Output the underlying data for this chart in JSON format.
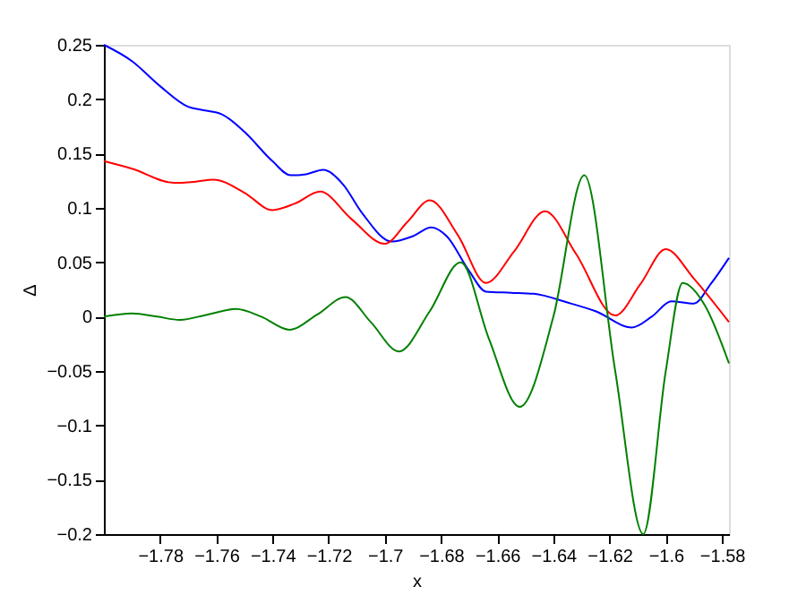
{
  "chart_data": {
    "type": "line",
    "xlabel": "x",
    "ylabel": "Δ",
    "xlim": [
      -1.8,
      -1.5775
    ],
    "ylim": [
      -0.2,
      0.25
    ],
    "xticks": [
      -1.78,
      -1.76,
      -1.74,
      -1.72,
      -1.7,
      -1.68,
      -1.66,
      -1.64,
      -1.62,
      -1.6,
      -1.58
    ],
    "yticks": [
      -0.2,
      -0.15,
      -0.1,
      -0.05,
      0,
      0.05,
      0.1,
      0.15,
      0.2,
      0.25
    ],
    "grid": false,
    "legend": false,
    "marker": "none",
    "line_style": "solid",
    "series": [
      {
        "color": "#0000ff",
        "x": [
          -1.8,
          -1.79,
          -1.78,
          -1.77,
          -1.765,
          -1.758,
          -1.75,
          -1.74,
          -1.7335,
          -1.728,
          -1.722,
          -1.715,
          -1.708,
          -1.6975,
          -1.69,
          -1.6835,
          -1.678,
          -1.67,
          -1.664,
          -1.655,
          -1.647,
          -1.635,
          -1.625,
          -1.612,
          -1.605,
          -1.598,
          -1.59,
          -1.584,
          -1.5775
        ],
        "values": [
          0.25,
          0.235,
          0.212,
          0.193,
          0.19,
          0.186,
          0.17,
          0.143,
          0.13,
          0.131,
          0.135,
          0.122,
          0.095,
          0.069,
          0.074,
          0.082,
          0.074,
          0.042,
          0.023,
          0.022,
          0.021,
          0.013,
          0.005,
          -0.01,
          0.0,
          0.014,
          0.012,
          0.03,
          0.054
        ]
      },
      {
        "color": "#ff0000",
        "x": [
          -1.8,
          -1.79,
          -1.775,
          -1.768,
          -1.761,
          -1.75,
          -1.74,
          -1.732,
          -1.723,
          -1.712,
          -1.7,
          -1.692,
          -1.684,
          -1.674,
          -1.664,
          -1.654,
          -1.643,
          -1.632,
          -1.618,
          -1.609,
          -1.6,
          -1.59,
          -1.5775
        ],
        "values": [
          0.143,
          0.136,
          0.123,
          0.124,
          0.126,
          0.114,
          0.098,
          0.104,
          0.115,
          0.09,
          0.067,
          0.087,
          0.107,
          0.075,
          0.031,
          0.06,
          0.097,
          0.058,
          0.001,
          0.03,
          0.062,
          0.035,
          -0.005
        ]
      },
      {
        "color": "#008000",
        "x": [
          -1.8,
          -1.79,
          -1.781,
          -1.773,
          -1.763,
          -1.753,
          -1.744,
          -1.734,
          -1.724,
          -1.714,
          -1.705,
          -1.695,
          -1.684,
          -1.673,
          -1.663,
          -1.652,
          -1.64,
          -1.629,
          -1.618,
          -1.608,
          -1.6,
          -1.594,
          -1.586,
          -1.5775
        ],
        "values": [
          0.0,
          0.003,
          0.0,
          -0.003,
          0.002,
          0.007,
          0.0,
          -0.012,
          0.002,
          0.018,
          -0.005,
          -0.032,
          0.005,
          0.05,
          -0.02,
          -0.083,
          0.0,
          0.13,
          -0.05,
          -0.2,
          -0.05,
          0.031,
          0.01,
          -0.043
        ]
      }
    ]
  }
}
